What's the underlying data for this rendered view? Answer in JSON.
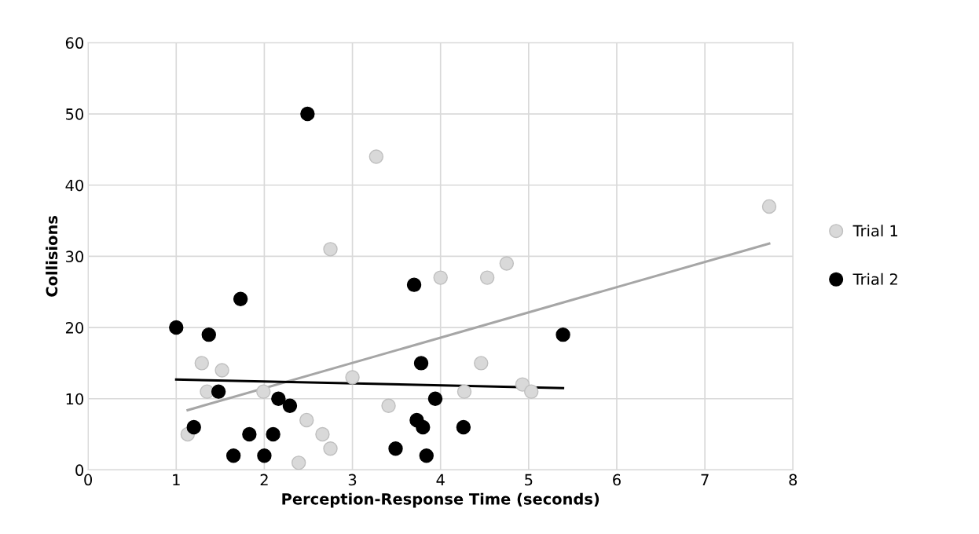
{
  "chart_data": {
    "type": "scatter",
    "xlabel": "Perception-Response Time (seconds)",
    "ylabel": "Collisions",
    "xlim": [
      0,
      8
    ],
    "xticks": [
      0,
      1,
      2,
      3,
      4,
      5,
      6,
      7,
      8
    ],
    "ylim": [
      0,
      60
    ],
    "yticks": [
      0,
      10,
      20,
      30,
      40,
      50,
      60
    ],
    "grid": true,
    "legend": "right",
    "marker": "circle",
    "series": [
      {
        "name": "Trial 1",
        "color": "#d9d9d9",
        "x": [
          1.13,
          1.29,
          1.35,
          1.52,
          1.99,
          2.39,
          2.48,
          2.66,
          2.75,
          2.75,
          3.0,
          3.27,
          3.41,
          4.0,
          4.27,
          4.53,
          4.46,
          4.75,
          4.93,
          5.03,
          7.73
        ],
        "values": [
          5,
          15,
          11,
          14,
          11,
          1,
          7,
          5,
          3,
          31,
          13,
          44,
          9,
          27,
          11,
          27,
          15,
          29,
          12,
          11,
          37
        ]
      },
      {
        "name": "Trial 2",
        "color": "#000000",
        "x": [
          1.0,
          1.2,
          1.37,
          1.48,
          1.65,
          1.73,
          1.83,
          2.0,
          2.1,
          2.16,
          2.29,
          2.49,
          3.49,
          3.7,
          3.73,
          3.78,
          3.8,
          3.84,
          3.94,
          4.26,
          5.39
        ],
        "values": [
          20,
          6,
          19,
          11,
          2,
          24,
          5,
          2,
          5,
          10,
          9,
          50,
          3,
          26,
          7,
          15,
          6,
          2,
          10,
          6,
          19
        ]
      },
      {
        "type": "line",
        "marker": "none",
        "color": "#a6a6a6",
        "x": [
          1.13,
          7.73
        ],
        "values": [
          8.4,
          31.8
        ]
      },
      {
        "type": "line",
        "marker": "none",
        "color": "#000000",
        "x": [
          1.0,
          5.39
        ],
        "values": [
          12.7,
          11.5
        ]
      }
    ]
  }
}
